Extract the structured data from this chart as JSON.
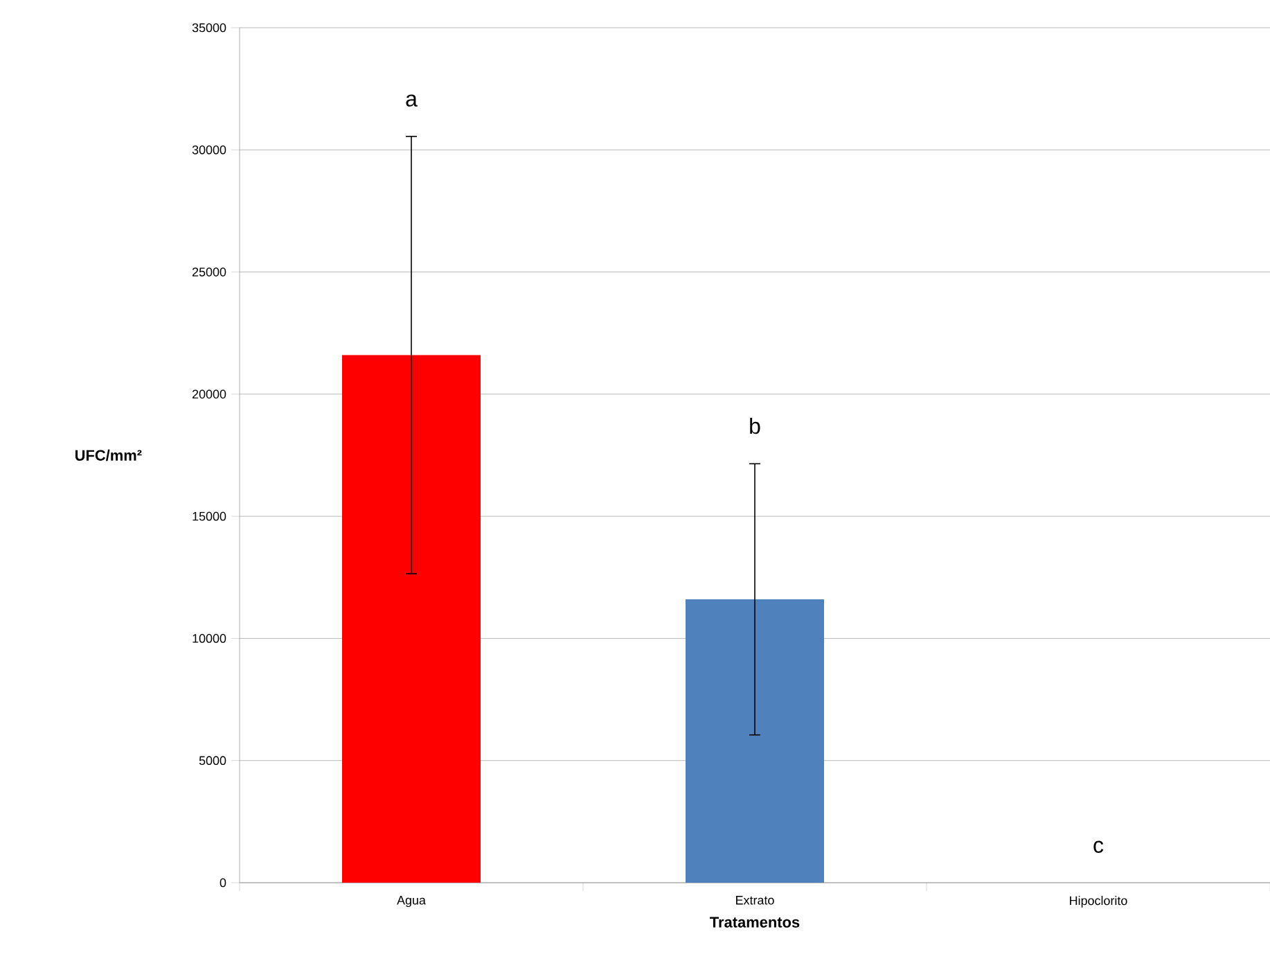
{
  "chart_data": {
    "type": "bar",
    "xlabel": "Tratamentos",
    "ylabel": "UFC/mm²",
    "categories": [
      "Agua",
      "Extrato",
      "Hipoclorito"
    ],
    "values": [
      21600,
      11600,
      0
    ],
    "errors": [
      8950,
      5550,
      null
    ],
    "colors": [
      "#ff0000",
      "#4f81bd",
      "#9bbb59"
    ],
    "ylim": [
      0,
      35000
    ],
    "yticks": [
      0,
      5000,
      10000,
      15000,
      20000,
      25000,
      30000,
      35000
    ],
    "grid": "y",
    "annotations": [
      "a",
      "b",
      "c"
    ]
  }
}
